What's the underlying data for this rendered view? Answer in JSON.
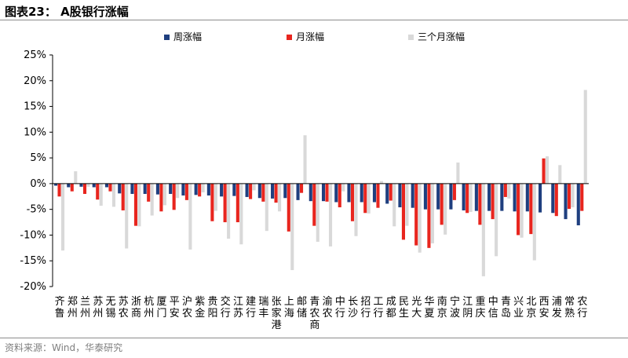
{
  "header": {
    "title": "图表23：  A股银行涨幅"
  },
  "footer": {
    "source": "资料来源：Wind，华泰研究"
  },
  "chart_data": {
    "type": "bar",
    "title": "图表23：  A股银行涨幅",
    "ylim": [
      -20,
      25
    ],
    "yticks": [
      -20,
      -15,
      -10,
      -5,
      0,
      5,
      10,
      15,
      20,
      25
    ],
    "ytick_labels": [
      "-20%",
      "-15%",
      "-10%",
      "-5%",
      "0%",
      "5%",
      "10%",
      "15%",
      "20%",
      "25%"
    ],
    "grid": false,
    "legend_position": "top",
    "categories": [
      "齐鲁",
      "郑州",
      "兰州",
      "苏州",
      "无锡",
      "苏农",
      "浙商",
      "杭州",
      "厦门",
      "平安",
      "沪农",
      "紫金",
      "贵阳",
      "交行",
      "江苏",
      "建行",
      "瑞丰",
      "张家港",
      "上海",
      "邮储",
      "青农商",
      "渝农",
      "中行",
      "长沙",
      "招行",
      "工行",
      "成都",
      "民生",
      "光大",
      "华夏",
      "南京",
      "宁波",
      "江阴",
      "重庆",
      "中信",
      "青岛",
      "兴业",
      "北京",
      "西安",
      "浦发",
      "常熟",
      "农行"
    ],
    "series": [
      {
        "name": "周涨幅",
        "color": "#1f3f7f",
        "values": [
          -0.4,
          -0.7,
          -0.6,
          -0.7,
          -0.7,
          -1.9,
          -2.0,
          -2.0,
          -2.1,
          -2.0,
          -2.3,
          -2.2,
          -2.3,
          -2.5,
          -2.4,
          -2.6,
          -2.8,
          -2.9,
          -2.8,
          -3.2,
          -3.4,
          -3.4,
          -3.6,
          -3.6,
          -3.6,
          -3.6,
          -3.9,
          -4.6,
          -4.7,
          -5.0,
          -5.0,
          -5.0,
          -5.2,
          -5.3,
          -5.3,
          -5.3,
          -5.4,
          -5.4,
          -5.6,
          -5.7,
          -6.9,
          -8.1
        ]
      },
      {
        "name": "月涨幅",
        "color": "#e8251e",
        "values": [
          -2.5,
          -1.5,
          -2.0,
          -3.1,
          -1.5,
          -5.2,
          -8.2,
          -3.5,
          -5.4,
          -5.1,
          -3.2,
          -2.5,
          -7.3,
          -7.5,
          -7.5,
          -3.0,
          -3.5,
          -3.7,
          -9.3,
          -1.8,
          -8.2,
          -3.5,
          -4.6,
          -7.3,
          -5.7,
          -4.7,
          -3.3,
          -10.9,
          -12.0,
          -12.5,
          -8.0,
          -3.2,
          -5.7,
          -8.0,
          -6.9,
          -2.6,
          -10.0,
          -9.8,
          4.9,
          -6.3,
          -4.9,
          -5.3
        ]
      },
      {
        "name": "三个月涨幅",
        "color": "#d9d9d9",
        "values": [
          -13.0,
          2.4,
          -0.6,
          -4.3,
          -4.5,
          -12.6,
          -8.3,
          -6.2,
          -4.2,
          -2.8,
          -12.8,
          -1.7,
          -5.3,
          -10.7,
          -11.8,
          -1.3,
          -9.2,
          -5.4,
          -16.8,
          9.4,
          -11.3,
          -12.2,
          -1.5,
          -10.2,
          -5.8,
          0.5,
          -8.3,
          -8.2,
          -13.4,
          -11.6,
          -9.9,
          4.1,
          -5.5,
          -18.0,
          -14.1,
          -2.9,
          -10.5,
          -14.9,
          5.3,
          3.6,
          -4.6,
          18.2
        ]
      }
    ]
  }
}
